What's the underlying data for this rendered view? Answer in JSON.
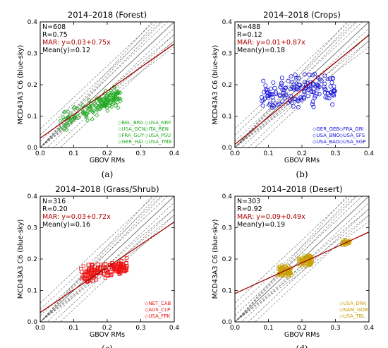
{
  "chart_data": [
    {
      "type": "scatter",
      "title": "2014–2018 (Forest)",
      "xlabel": "GBOV RMs",
      "ylabel": "MCD43A3 C6 (blue-sky)",
      "xlim": [
        0.0,
        0.4
      ],
      "ylim": [
        0.0,
        0.4
      ],
      "xticks": [
        "0.0",
        "0.1",
        "0.2",
        "0.3",
        "0.4"
      ],
      "yticks": [
        "0.0",
        "0.1",
        "0.2",
        "0.3",
        "0.4"
      ],
      "stats": [
        "N=608",
        "R=0.75",
        "MAR: y=0.03+0.75x",
        "Mean(y)=0.12"
      ],
      "fit": {
        "intercept": 0.03,
        "slope": 0.75
      },
      "legend": [
        "BEL_BRA",
        "USA_NRF",
        "USA_GCN",
        "ITA_REN",
        "FRA_GUY",
        "USA_PSU",
        "GER_HAI",
        "USA_TMB"
      ],
      "legend_position": "bottom-right",
      "color": "#22aa22",
      "marker": "diamond",
      "caption": "(a)",
      "cluster": {
        "x_range": [
          0.06,
          0.24
        ],
        "y_base": 0.062,
        "y_slope": 0.42,
        "y_spread": 0.045
      }
    },
    {
      "type": "scatter",
      "title": "2014–2018 (Crops)",
      "xlabel": "GBOV RMs",
      "ylabel": "MCD43A3 C6 (blue-sky)",
      "xlim": [
        0.0,
        0.4
      ],
      "ylim": [
        0.0,
        0.4
      ],
      "xticks": [
        "0.0",
        "0.1",
        "0.2",
        "0.3",
        "0.4"
      ],
      "yticks": [
        "0.0",
        "0.1",
        "0.2",
        "0.3",
        "0.4"
      ],
      "stats": [
        "N=488",
        "R=0.12",
        "MAR: y=0.01+0.87x",
        "Mean(y)=0.18"
      ],
      "fit": {
        "intercept": 0.01,
        "slope": 0.87
      },
      "legend": [
        "GER_GEB",
        "FRA_GRI",
        "USA_BNO",
        "USA_SFS",
        "USA_BAO",
        "USA_SGP"
      ],
      "legend_position": "bottom-right",
      "color": "#1111dd",
      "marker": "circle",
      "caption": "(b)",
      "cluster": {
        "x_range": [
          0.08,
          0.3
        ],
        "y_base": 0.16,
        "y_slope": 0.1,
        "y_spread": 0.065
      }
    },
    {
      "type": "scatter",
      "title": "2014–2018 (Grass/Shrub)",
      "xlabel": "GBOV RMs",
      "ylabel": "MCD43A3 C6 (blue-sky)",
      "xlim": [
        0.0,
        0.4
      ],
      "ylim": [
        0.0,
        0.4
      ],
      "xticks": [
        "0.0",
        "0.1",
        "0.2",
        "0.3",
        "0.4"
      ],
      "yticks": [
        "0.0",
        "0.1",
        "0.2",
        "0.3",
        "0.4"
      ],
      "stats": [
        "N=316",
        "R=0.20",
        "MAR: y=0.03+0.72x",
        "Mean(y)=0.16"
      ],
      "fit": {
        "intercept": 0.03,
        "slope": 0.72
      },
      "legend": [
        "NET_CAB",
        "AUS_CLP",
        "USA_FPK"
      ],
      "legend_position": "bottom-right",
      "color": "#ee1111",
      "marker": "square",
      "caption": "(c)",
      "cluster": {
        "x_range": [
          0.12,
          0.26
        ],
        "y_base": 0.12,
        "y_slope": 0.22,
        "y_spread": 0.035
      }
    },
    {
      "type": "scatter",
      "title": "2014–2018 (Desert)",
      "xlabel": "GBOV RMs",
      "ylabel": "MCD43A3 C6 (blue-sky)",
      "xlim": [
        0.0,
        0.4
      ],
      "ylim": [
        0.0,
        0.4
      ],
      "xticks": [
        "0.0",
        "0.1",
        "0.2",
        "0.3",
        "0.4"
      ],
      "yticks": [
        "0.0",
        "0.1",
        "0.2",
        "0.3",
        "0.4"
      ],
      "stats": [
        "N=303",
        "R=0.92",
        "MAR: y=0.09+0.49x",
        "Mean(y)=0.19"
      ],
      "fit": {
        "intercept": 0.09,
        "slope": 0.49
      },
      "legend": [
        "USA_DRA",
        "NAM_GOB",
        "USA_TBL"
      ],
      "legend_position": "bottom-right",
      "color": "#c8a000",
      "marker": "circle",
      "caption": "(d)",
      "groups": [
        {
          "x": [
            0.13,
            0.17
          ],
          "y": [
            0.15,
            0.175
          ]
        },
        {
          "x": [
            0.19,
            0.23
          ],
          "y": [
            0.18,
            0.21
          ]
        },
        {
          "x": [
            0.32,
            0.345
          ],
          "y": [
            0.245,
            0.26
          ]
        }
      ]
    }
  ]
}
